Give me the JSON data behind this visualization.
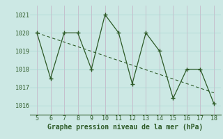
{
  "x": [
    5,
    6,
    7,
    8,
    9,
    10,
    11,
    12,
    13,
    14,
    15,
    16,
    17,
    18
  ],
  "y": [
    1020.0,
    1017.5,
    1020.0,
    1020.0,
    1018.0,
    1021.0,
    1020.0,
    1017.2,
    1020.0,
    1019.0,
    1016.4,
    1018.0,
    1018.0,
    1016.1
  ],
  "trend_x": [
    5,
    18
  ],
  "trend_y": [
    1020.0,
    1016.7
  ],
  "line_color": "#2d5a27",
  "bg_color": "#cce8e4",
  "hgrid_color": "#a8d4d0",
  "vgrid_color": "#c4afc4",
  "xlabel": "Graphe pression niveau de la mer (hPa)",
  "ylim": [
    1015.5,
    1021.5
  ],
  "xlim": [
    4.5,
    18.5
  ],
  "yticks": [
    1016,
    1017,
    1018,
    1019,
    1020,
    1021
  ],
  "xticks": [
    5,
    6,
    7,
    8,
    9,
    10,
    11,
    12,
    13,
    14,
    15,
    16,
    17,
    18
  ],
  "tick_fontsize": 6.0,
  "xlabel_fontsize": 7.0
}
